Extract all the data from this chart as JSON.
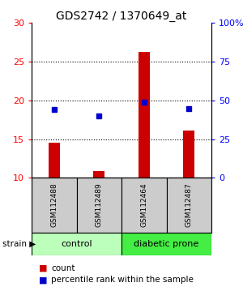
{
  "title": "GDS2742 / 1370649_at",
  "samples": [
    "GSM112488",
    "GSM112489",
    "GSM112464",
    "GSM112487"
  ],
  "counts": [
    14.6,
    10.9,
    26.3,
    16.1
  ],
  "percentiles": [
    44.0,
    40.0,
    49.0,
    44.5
  ],
  "groups": [
    "control",
    "control",
    "diabetic prone",
    "diabetic prone"
  ],
  "ylim_left": [
    10,
    30
  ],
  "ylim_right": [
    0,
    100
  ],
  "yticks_left": [
    10,
    15,
    20,
    25,
    30
  ],
  "ytick_labels_left": [
    "10",
    "15",
    "20",
    "25",
    "30"
  ],
  "yticks_right": [
    0,
    25,
    50,
    75,
    100
  ],
  "ytick_labels_right": [
    "0",
    "25",
    "50",
    "75",
    "100%"
  ],
  "bar_color": "#cc0000",
  "dot_color": "#0000cc",
  "sample_box_color": "#cccccc",
  "control_color": "#bbffbb",
  "diabetic_color": "#44ee44",
  "legend_count_label": "count",
  "legend_pct_label": "percentile rank within the sample",
  "strain_label": "strain"
}
